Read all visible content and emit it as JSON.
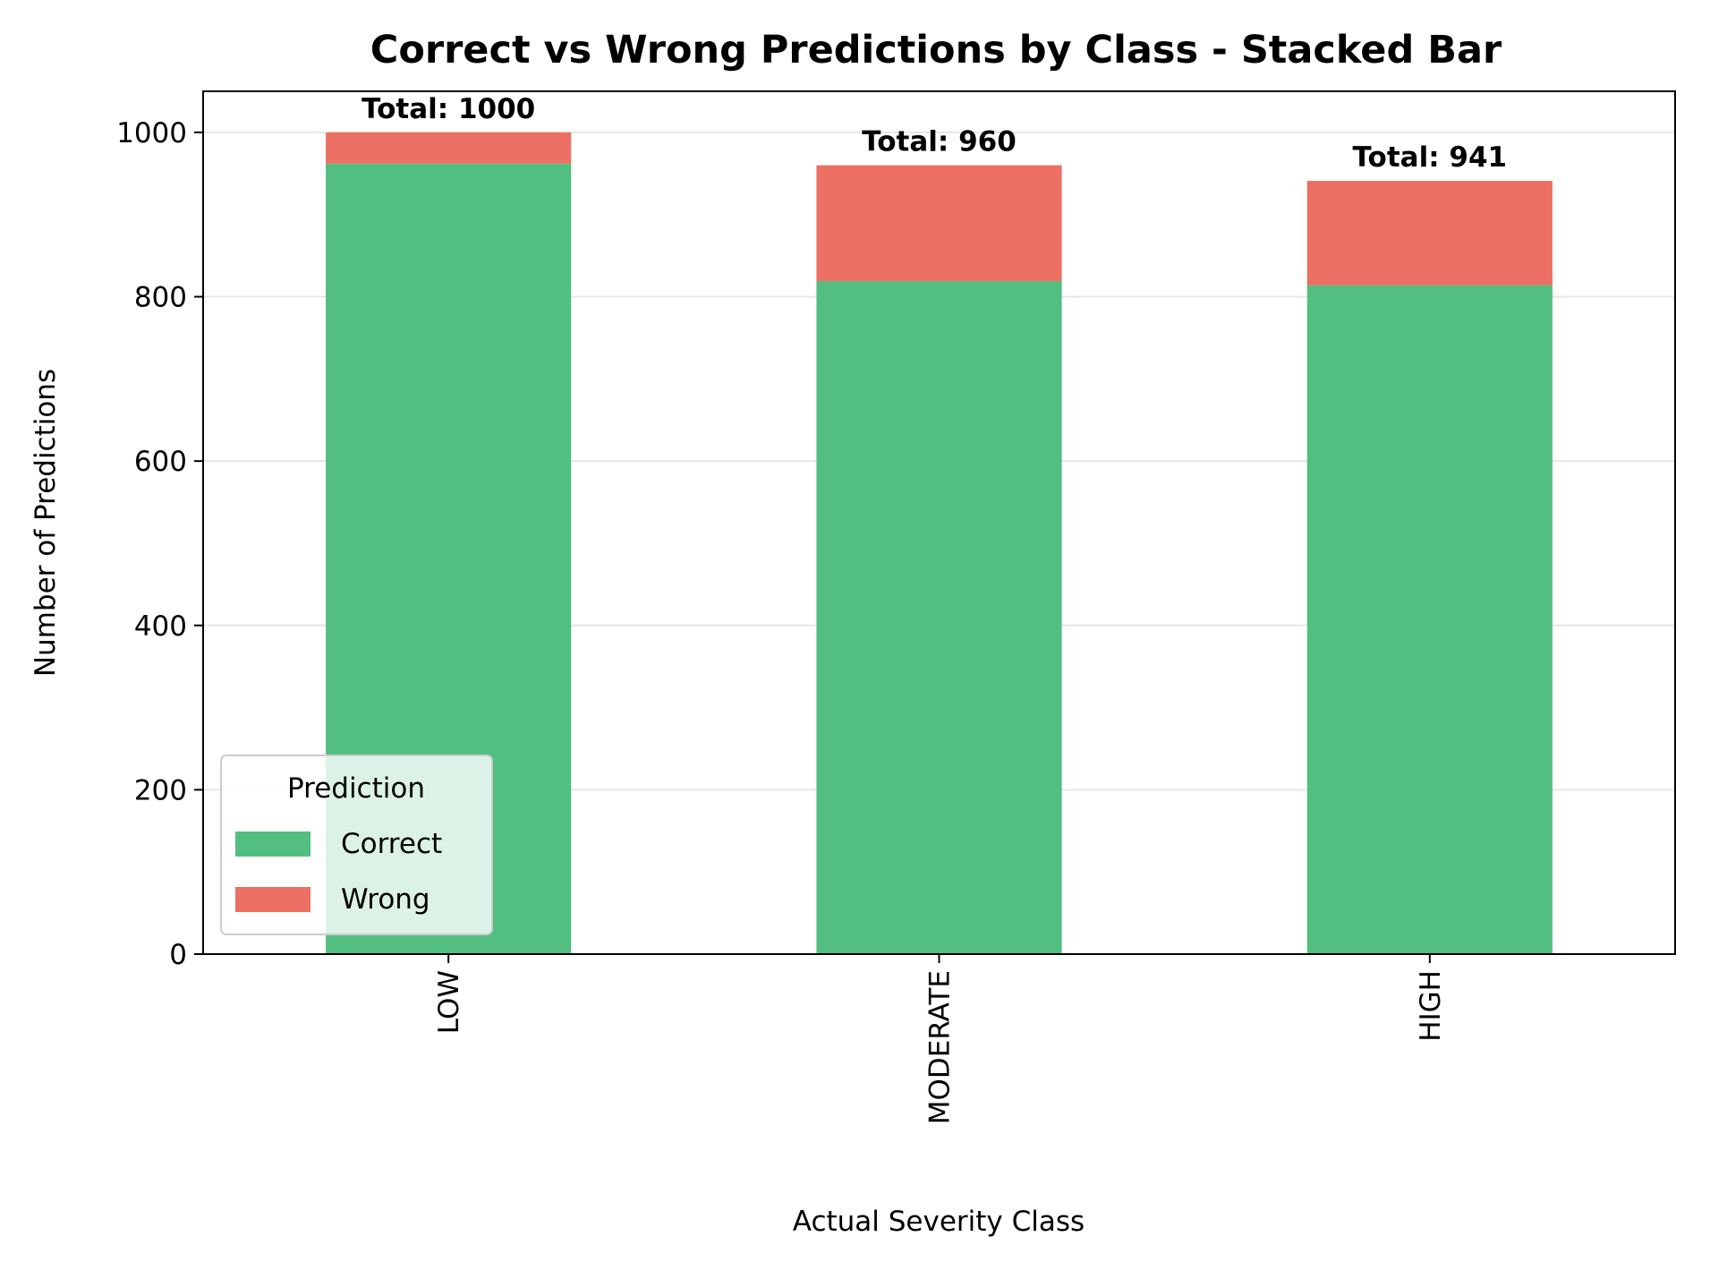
{
  "chart_data": {
    "type": "bar",
    "stacked": true,
    "title": "Correct vs Wrong Predictions by Class - Stacked Bar",
    "xlabel": "Actual Severity Class",
    "ylabel": "Number of Predictions",
    "categories": [
      "LOW",
      "MODERATE",
      "HIGH"
    ],
    "series": [
      {
        "name": "Correct",
        "color": "#52BE80",
        "values": [
          962,
          819,
          814
        ]
      },
      {
        "name": "Wrong",
        "color": "#EC7063",
        "values": [
          38,
          141,
          127
        ]
      }
    ],
    "totals": [
      1000,
      960,
      941
    ],
    "total_labels": [
      "Total: 1000",
      "Total: 960",
      "Total: 941"
    ],
    "ylim": [
      0,
      1050
    ],
    "yticks": [
      0,
      200,
      400,
      600,
      800,
      1000
    ],
    "ytick_labels": [
      "0",
      "200",
      "400",
      "600",
      "800",
      "1000"
    ],
    "grid": "y",
    "legend": {
      "title": "Prediction",
      "placement": "lower-left",
      "entries": [
        "Correct",
        "Wrong"
      ]
    }
  }
}
